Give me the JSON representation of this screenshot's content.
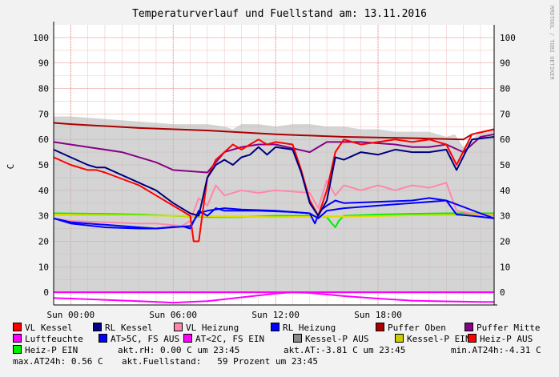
{
  "chart_data": {
    "type": "line",
    "title": "Temperaturverlauf und Fuellstand am: 13.11.2016",
    "ylabel": "C",
    "ylim": [
      -5,
      105
    ],
    "yticks": [
      0,
      10,
      20,
      30,
      40,
      50,
      60,
      70,
      80,
      90,
      100
    ],
    "xlim": [
      -1,
      24.8
    ],
    "xticks": [
      {
        "t": 0,
        "label": "Sun 00:00"
      },
      {
        "t": 6,
        "label": "Sun 06:00"
      },
      {
        "t": 12,
        "label": "Sun 12:00"
      },
      {
        "t": 18,
        "label": "Sun 18:00"
      }
    ],
    "grid": true,
    "legend_position": "bottom",
    "side_text": "RRDTOOL / TOBI OETIKER",
    "series": [
      {
        "name": "Kessel-P AUS",
        "type": "area",
        "color": "#b8b8b8",
        "x": [
          -1,
          0,
          2,
          4,
          6,
          7,
          8,
          9,
          9.5,
          10,
          11,
          12,
          13,
          14,
          15,
          16,
          17,
          18,
          19,
          20,
          21,
          22,
          22.5,
          23,
          23.5,
          24,
          24.8
        ],
        "y": [
          69,
          69,
          68,
          67,
          66,
          66,
          66,
          65,
          64,
          66,
          66,
          65,
          66,
          66,
          65,
          65,
          64,
          64,
          63,
          63,
          63,
          61,
          62,
          57,
          60,
          63,
          64
        ]
      },
      {
        "name": "Luftfeuchte",
        "color": "#ff00ff",
        "x": [
          -1,
          24.8
        ],
        "y": [
          0,
          0
        ]
      },
      {
        "name": "AT<2C, FS EIN",
        "color": "#ff00ff",
        "x": [
          -1,
          0,
          2,
          4,
          6,
          8,
          10,
          12,
          13,
          14,
          16,
          18,
          20,
          22,
          24,
          24.8
        ],
        "y": [
          -2.3,
          -2.5,
          -3,
          -3.5,
          -4.1,
          -3.5,
          -2,
          -0.5,
          0,
          -0.3,
          -1.5,
          -2.5,
          -3.3,
          -3.6,
          -3.8,
          -3.8
        ]
      },
      {
        "name": "Heiz-P EIN",
        "color": "#00ee00",
        "x": [
          -1,
          2,
          4,
          6,
          8,
          10,
          12,
          14,
          15,
          15.3,
          15.5,
          15.7,
          16,
          18,
          20,
          22,
          24,
          24.8
        ],
        "y": [
          31,
          30.8,
          30.5,
          30,
          29.5,
          29.5,
          30,
          30,
          29.5,
          27,
          25.5,
          28,
          30,
          30.5,
          30.8,
          31,
          31,
          31
        ]
      },
      {
        "name": "Kessel-P EIN",
        "color": "#dddd00",
        "x": [
          -1,
          4,
          8,
          12,
          16,
          20,
          24.8
        ],
        "y": [
          30.5,
          30.2,
          29.8,
          29.5,
          29.7,
          30.2,
          30.5
        ]
      },
      {
        "name": "AT>5C, FS AUS",
        "color": "#0000ff",
        "x": [
          -1,
          0,
          2,
          4,
          5,
          6.5,
          7,
          7.5,
          8,
          8.5,
          9,
          11,
          13,
          14,
          14.3,
          14.6,
          15,
          15.5,
          16,
          18,
          20,
          21,
          22,
          22.6,
          23.5,
          24.8
        ],
        "y": [
          29,
          27,
          25.5,
          25,
          25,
          26,
          25,
          32,
          30,
          33,
          32,
          32,
          31.5,
          31,
          27,
          32,
          34,
          36,
          35,
          35.5,
          36,
          37,
          36,
          30.5,
          30,
          29
        ]
      },
      {
        "name": "VL Heizung",
        "color": "#ff88aa",
        "x": [
          -1,
          0,
          2,
          4,
          5,
          6.5,
          7,
          7.5,
          8,
          8.5,
          9,
          10,
          11,
          12,
          13,
          14,
          14.5,
          15,
          15.5,
          16,
          17,
          18,
          19,
          20,
          21,
          22,
          22.6,
          23.5,
          24.8
        ],
        "y": [
          29,
          28,
          27.5,
          27,
          27,
          26,
          28,
          37,
          34,
          42,
          38,
          40,
          39,
          40,
          39.5,
          39,
          33,
          44,
          38,
          42,
          40,
          42,
          40,
          42,
          41,
          43,
          32,
          31,
          30
        ]
      },
      {
        "name": "RL Heizung",
        "color": "#0000ff",
        "x": [
          -1,
          0,
          2,
          4,
          5,
          6,
          7,
          7.5,
          8,
          9,
          10,
          12,
          13,
          14,
          14.5,
          15,
          16,
          18,
          20,
          22,
          24,
          24.8
        ],
        "y": [
          29,
          27.5,
          26.5,
          25.5,
          25,
          25.5,
          26,
          31,
          32,
          33,
          32.5,
          32,
          31.5,
          31,
          29,
          32,
          33,
          34,
          35,
          36,
          31,
          29
        ]
      },
      {
        "name": "Puffer Oben",
        "color": "#aa0000",
        "x": [
          -1,
          0,
          4,
          8,
          12,
          16,
          20,
          23,
          23.5,
          24.8
        ],
        "y": [
          66.5,
          66,
          64.5,
          63.5,
          62,
          61,
          60.5,
          60,
          62,
          64
        ]
      },
      {
        "name": "Puffer Mitte",
        "color": "#880088",
        "x": [
          -1,
          1,
          3,
          5,
          6,
          8,
          9,
          10,
          11,
          12,
          14,
          15,
          17,
          19,
          20,
          21,
          22,
          23,
          24,
          24.8
        ],
        "y": [
          59,
          57,
          55,
          51,
          48,
          47,
          55,
          57,
          58,
          58,
          55,
          59,
          59,
          58,
          57,
          57,
          58,
          55,
          61,
          62
        ]
      },
      {
        "name": "VL Kessel",
        "color": "#ff0000",
        "x": [
          -1,
          0,
          1,
          1.5,
          2,
          4,
          5,
          6,
          7,
          7.2,
          7.5,
          8,
          8.5,
          9,
          9.5,
          10,
          10.5,
          11,
          11.5,
          12,
          13,
          13.5,
          14,
          14.5,
          15,
          15.5,
          16,
          17,
          18,
          19,
          20,
          21,
          22,
          22.6,
          23.5,
          24.8
        ],
        "y": [
          53,
          50,
          48,
          48,
          47,
          42,
          38,
          34,
          30,
          20,
          20,
          45,
          52,
          55,
          58,
          56,
          58,
          60,
          58,
          59,
          58,
          48,
          36,
          30,
          40,
          55,
          60,
          58,
          59,
          60,
          59,
          60,
          58,
          50,
          62,
          64
        ]
      },
      {
        "name": "RL Kessel",
        "color": "#000080",
        "x": [
          -1,
          0,
          1,
          1.5,
          2,
          4,
          5,
          6,
          7,
          7.5,
          8,
          8.5,
          9,
          9.5,
          10,
          10.5,
          11,
          11.5,
          12,
          13,
          13.5,
          14,
          14.5,
          15,
          15.5,
          16,
          17,
          18,
          19,
          20,
          21,
          22,
          22.6,
          23.5,
          24.8
        ],
        "y": [
          56,
          53,
          50,
          49,
          49,
          43,
          40,
          35,
          31,
          30,
          45,
          50,
          52,
          50,
          53,
          54,
          57,
          54,
          57,
          56,
          47,
          35,
          30,
          36,
          53,
          52,
          55,
          54,
          56,
          55,
          55,
          56,
          48,
          60,
          61
        ]
      }
    ],
    "bottom_labels": {
      "luftfeuchte": "Luftfeuchte",
      "heiz_p_ein": "Heiz-P EIN"
    }
  },
  "legend": [
    {
      "label": "VL Kessel",
      "color": "#ff0000"
    },
    {
      "label": "RL Kessel",
      "color": "#000080"
    },
    {
      "label": "VL Heizung",
      "color": "#ff88aa"
    },
    {
      "label": "RL Heizung",
      "color": "#0000ff"
    },
    {
      "label": "Puffer Oben",
      "color": "#aa0000"
    },
    {
      "label": "Puffer Mitte",
      "color": "#880088"
    },
    {
      "label": "Luftfeuchte",
      "color": "#ff00ff"
    },
    {
      "label": "AT>5C, FS AUS",
      "color": "#0000ff"
    },
    {
      "label": "AT<2C, FS EIN",
      "color": "#ff00ff"
    },
    {
      "label": "Kessel-P AUS",
      "color": "#888888"
    },
    {
      "label": "Kessel-P EIN",
      "color": "#cccc00"
    },
    {
      "label": "Heiz-P AUS",
      "color": "#ff0000"
    },
    {
      "label": "Heiz-P EIN",
      "color": "#00ee00"
    }
  ],
  "info": {
    "akt_rh": "akt.rH: 0.00 C um 23:45",
    "akt_at": "akt.AT:-3.81 C um 23:45",
    "min_at": "min.AT24h:-4.31 C",
    "max_at": "max.AT24h: 0.56 C",
    "fuellstand": "akt.Fuellstand:   59 Prozent um 23:45"
  }
}
